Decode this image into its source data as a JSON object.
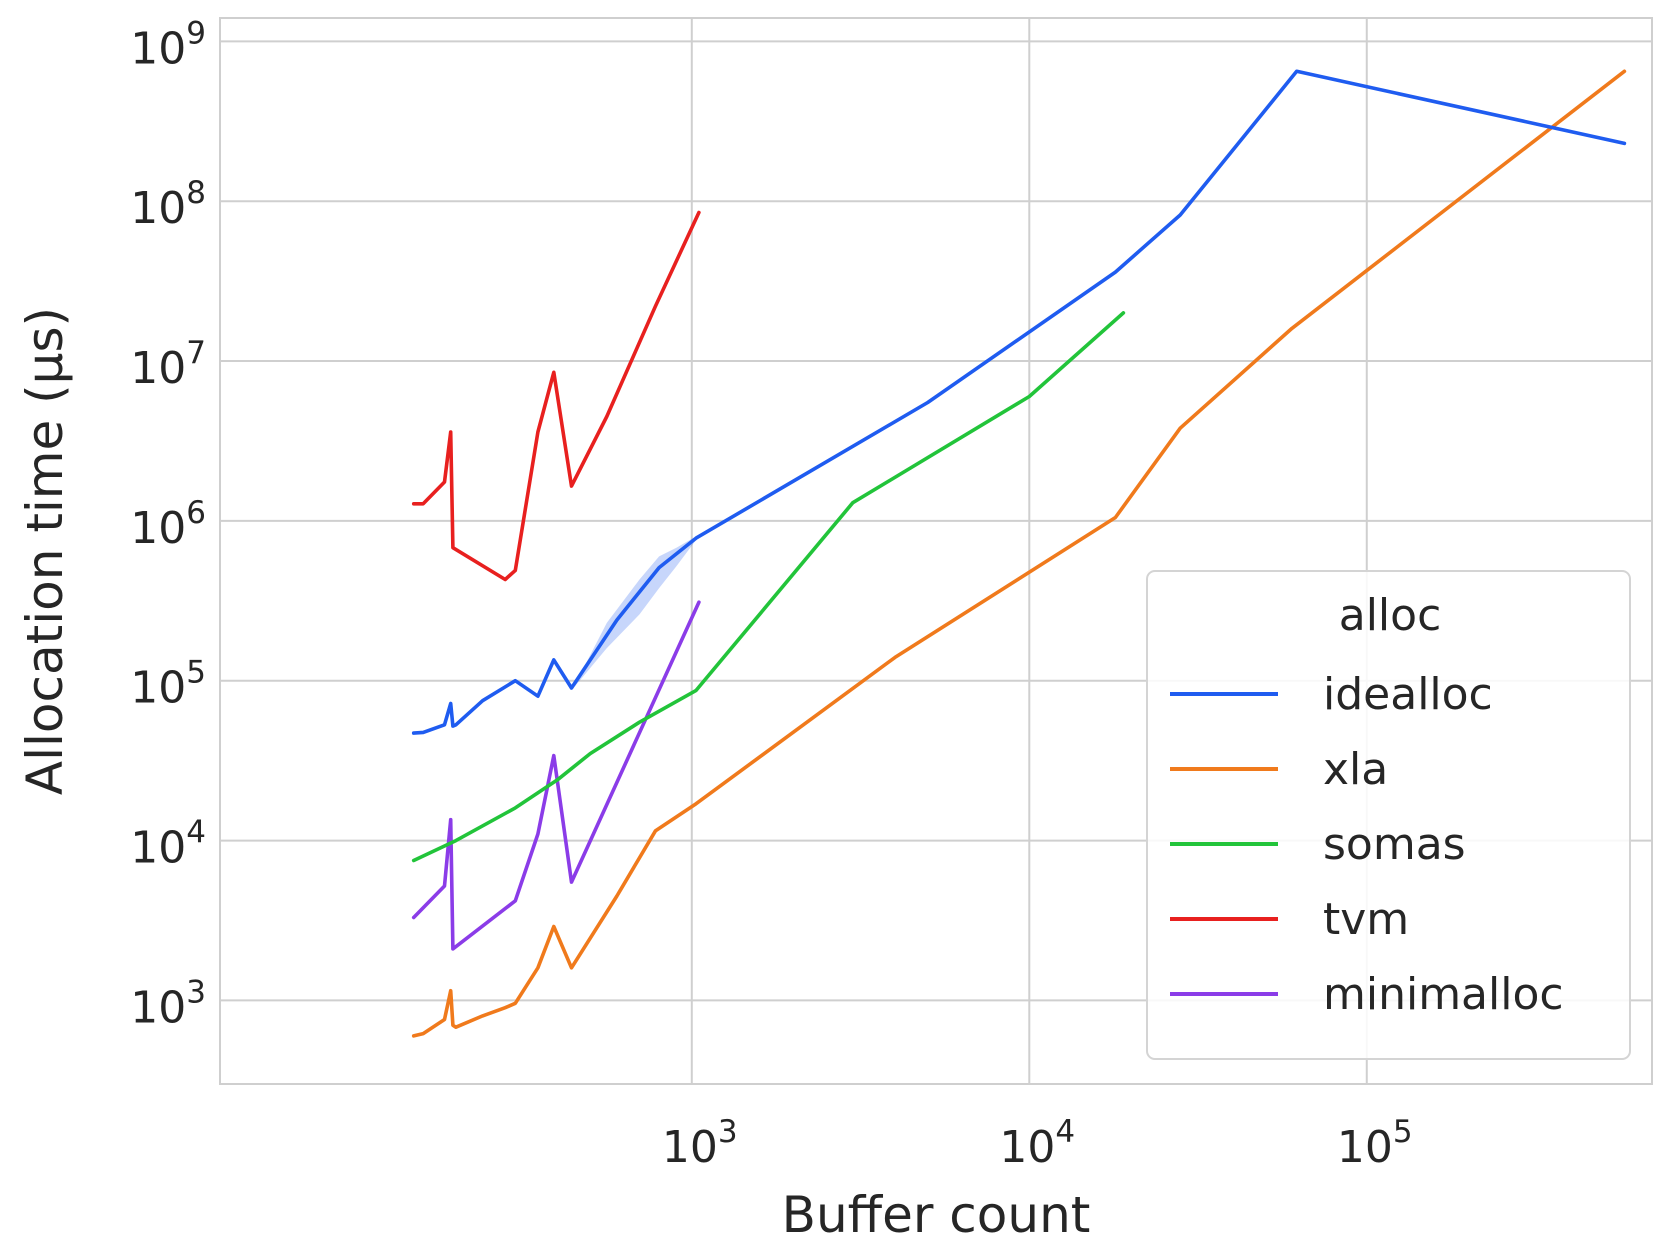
{
  "chart_data": {
    "type": "line",
    "title": "",
    "xlabel": "Buffer count",
    "ylabel": "Allocation time (μs)",
    "xscale": "log",
    "yscale": "log",
    "xlim": [
      40,
      700000
    ],
    "ylim": [
      300,
      1400000000
    ],
    "xticks": [
      {
        "value": 1000,
        "base": "10",
        "exp": "3"
      },
      {
        "value": 10000,
        "base": "10",
        "exp": "4"
      },
      {
        "value": 100000,
        "base": "10",
        "exp": "5"
      }
    ],
    "yticks": [
      {
        "value": 1000,
        "base": "10",
        "exp": "3"
      },
      {
        "value": 10000,
        "base": "10",
        "exp": "4"
      },
      {
        "value": 100000,
        "base": "10",
        "exp": "5"
      },
      {
        "value": 1000000,
        "base": "10",
        "exp": "6"
      },
      {
        "value": 10000000,
        "base": "10",
        "exp": "7"
      },
      {
        "value": 100000000,
        "base": "10",
        "exp": "8"
      },
      {
        "value": 1000000000,
        "base": "10",
        "exp": "9"
      }
    ],
    "grid": true,
    "legend": {
      "title": "alloc",
      "position": "lower-right"
    },
    "series": [
      {
        "name": "idealloc",
        "color": "#1f5cf0",
        "points": [
          [
            150,
            47000
          ],
          [
            160,
            47500
          ],
          [
            185,
            53000
          ],
          [
            193,
            72000
          ],
          [
            196,
            52000
          ],
          [
            200,
            53000
          ],
          [
            240,
            75000
          ],
          [
            300,
            100000
          ],
          [
            350,
            80000
          ],
          [
            390,
            135000
          ],
          [
            440,
            90000
          ],
          [
            600,
            240000
          ],
          [
            800,
            510000
          ],
          [
            1030,
            780000
          ],
          [
            5000,
            5500000
          ],
          [
            18000,
            36000000
          ],
          [
            28000,
            82000000
          ],
          [
            62000,
            650000000
          ],
          [
            580000,
            230000000
          ]
        ],
        "band": [
          [
            450,
            92000,
            94000
          ],
          [
            560,
            160000,
            230000
          ],
          [
            700,
            260000,
            430000
          ],
          [
            800,
            380000,
            600000
          ],
          [
            900,
            520000,
            680000
          ],
          [
            1030,
            760000,
            800000
          ]
        ]
      },
      {
        "name": "xla",
        "color": "#f07a1c",
        "points": [
          [
            150,
            600
          ],
          [
            160,
            620
          ],
          [
            185,
            760
          ],
          [
            193,
            1150
          ],
          [
            196,
            700
          ],
          [
            200,
            680
          ],
          [
            240,
            800
          ],
          [
            280,
            900
          ],
          [
            300,
            960
          ],
          [
            350,
            1600
          ],
          [
            390,
            2900
          ],
          [
            440,
            1600
          ],
          [
            600,
            4500
          ],
          [
            780,
            11500
          ],
          [
            1030,
            17000
          ],
          [
            4000,
            140000
          ],
          [
            18000,
            1050000
          ],
          [
            28000,
            3800000
          ],
          [
            60000,
            16000000
          ],
          [
            580000,
            650000000
          ]
        ]
      },
      {
        "name": "somas",
        "color": "#22c43a",
        "points": [
          [
            150,
            7500
          ],
          [
            200,
            10000
          ],
          [
            300,
            16000
          ],
          [
            400,
            24000
          ],
          [
            500,
            35000
          ],
          [
            700,
            55000
          ],
          [
            1030,
            87000
          ],
          [
            3000,
            1300000
          ],
          [
            10000,
            6000000
          ],
          [
            19000,
            20000000
          ]
        ]
      },
      {
        "name": "tvm",
        "color": "#e8201f",
        "points": [
          [
            150,
            1280000
          ],
          [
            160,
            1280000
          ],
          [
            185,
            1750000
          ],
          [
            193,
            3600000
          ],
          [
            196,
            680000
          ],
          [
            280,
            430000
          ],
          [
            300,
            490000
          ],
          [
            350,
            3600000
          ],
          [
            390,
            8500000
          ],
          [
            440,
            1650000
          ],
          [
            560,
            4500000
          ],
          [
            780,
            22000000
          ],
          [
            1050,
            85000000
          ]
        ]
      },
      {
        "name": "minimalloc",
        "color": "#8b3ce8",
        "points": [
          [
            150,
            3300
          ],
          [
            185,
            5200
          ],
          [
            193,
            13500
          ],
          [
            196,
            2100
          ],
          [
            300,
            4200
          ],
          [
            350,
            11000
          ],
          [
            390,
            34000
          ],
          [
            440,
            5500
          ],
          [
            1050,
            310000
          ]
        ]
      }
    ]
  }
}
